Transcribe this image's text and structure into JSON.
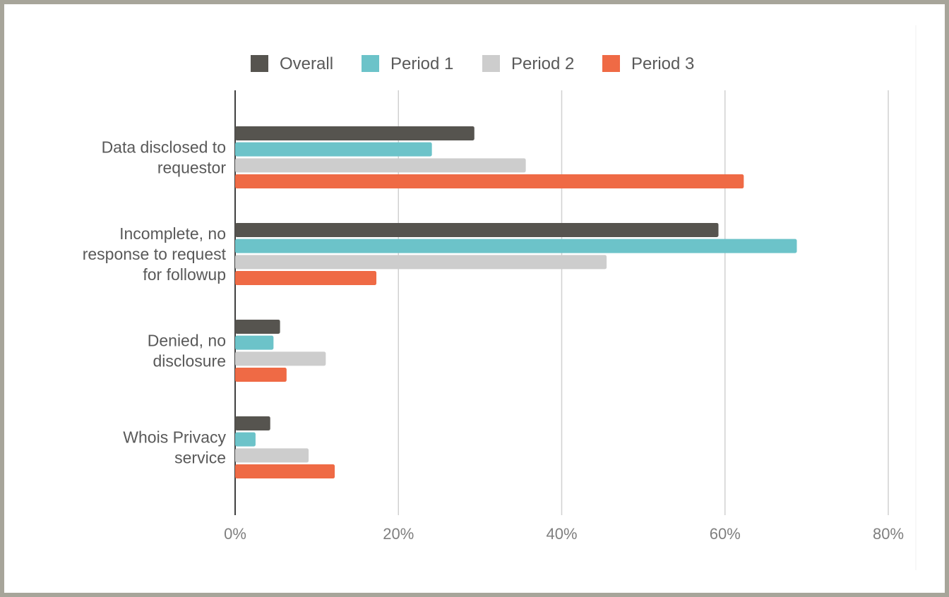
{
  "chart_data": {
    "type": "bar",
    "orientation": "horizontal",
    "categories": [
      [
        "Data disclosed to",
        "requestor"
      ],
      [
        "Incomplete, no",
        "response to request",
        "for followup"
      ],
      [
        "Denied, no",
        "disclosure"
      ],
      [
        "Whois Privacy",
        "service"
      ]
    ],
    "series": [
      {
        "name": "Overall",
        "color": "#56544f",
        "values": [
          29.3,
          59.2,
          5.5,
          4.3
        ]
      },
      {
        "name": "Period 1",
        "color": "#6cc3c9",
        "values": [
          24.1,
          68.8,
          4.7,
          2.5
        ]
      },
      {
        "name": "Period 2",
        "color": "#cdcdcd",
        "values": [
          35.6,
          45.5,
          11.1,
          9.0
        ]
      },
      {
        "name": "Period 3",
        "color": "#ef6a45",
        "values": [
          62.3,
          17.3,
          6.3,
          12.2
        ]
      }
    ],
    "xlim": [
      0,
      80
    ],
    "xticks": [
      "0%",
      "20%",
      "40%",
      "60%",
      "80%"
    ],
    "grid": true,
    "legend": "top"
  }
}
